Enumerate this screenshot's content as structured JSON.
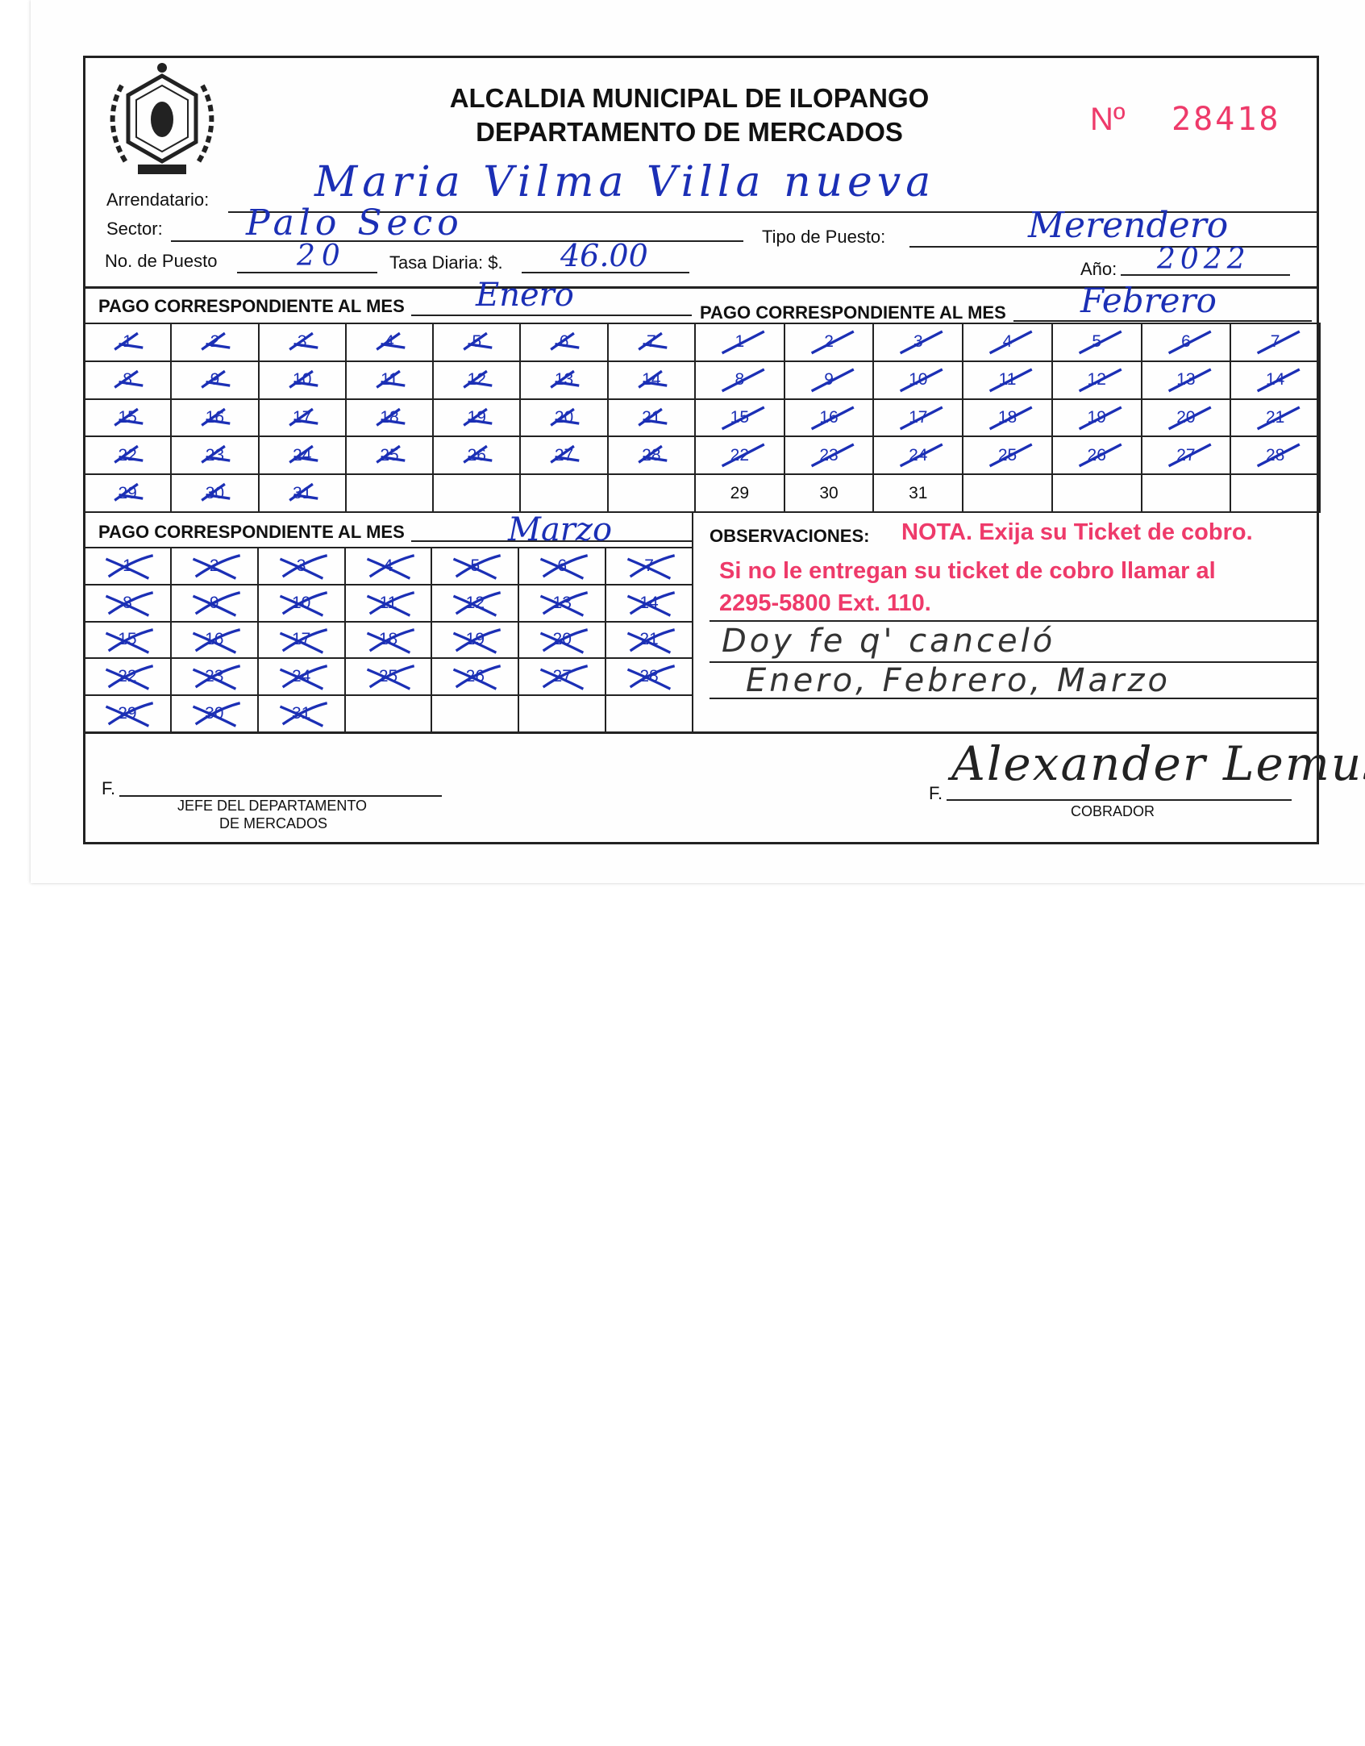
{
  "header": {
    "title_line1": "ALCALDIA MUNICIPAL DE ILOPANGO",
    "title_line2": "DEPARTAMENTO DE MERCADOS",
    "number_label": "Nº",
    "number": "28418",
    "number_color": "#ee3a6a"
  },
  "fields": {
    "arrendatario_label": "Arrendatario:",
    "arrendatario_value": "Maria Vilma Villa nueva",
    "sector_label": "Sector:",
    "sector_value": "Palo Seco",
    "tipo_label": "Tipo de Puesto:",
    "tipo_value": "Merendero",
    "puesto_label": "No. de Puesto",
    "puesto_value": "20",
    "tasa_label": "Tasa Diaria: $.",
    "tasa_value": "46.00",
    "anio_label": "Año:",
    "anio_value": "2022"
  },
  "months": [
    {
      "label": "PAGO CORRESPONDIENTE AL MES",
      "value": "Enero",
      "days": 31,
      "checked_through": 31,
      "mark": "slash"
    },
    {
      "label": "PAGO CORRESPONDIENTE AL MES",
      "value": "Febrero",
      "days": 31,
      "checked_through": 28,
      "mark": "slash"
    },
    {
      "label": "PAGO CORRESPONDIENTE AL MES",
      "value": "Marzo",
      "days": 31,
      "checked_through": 31,
      "mark": "cross"
    }
  ],
  "observaciones": {
    "label": "OBSERVACIONES:",
    "note_line1": "NOTA. Exija su Ticket de cobro.",
    "note_line2": "Si no le entregan su ticket de cobro llamar al",
    "note_line3": "2295-5800 Ext. 110.",
    "hand_line1": "Doy fe q' canceló",
    "hand_line2": "Enero, Febrero, Marzo"
  },
  "signatures": {
    "f_prefix": "F.",
    "jefe_line1": "JEFE DEL DEPARTAMENTO",
    "jefe_line2": "DE MERCADOS",
    "cobrador_signature": "Alexander Lemus",
    "cobrador_label": "COBRADOR"
  },
  "colors": {
    "ink": "#1b2fb5",
    "print_red": "#ee3a6a",
    "border": "#222222"
  }
}
